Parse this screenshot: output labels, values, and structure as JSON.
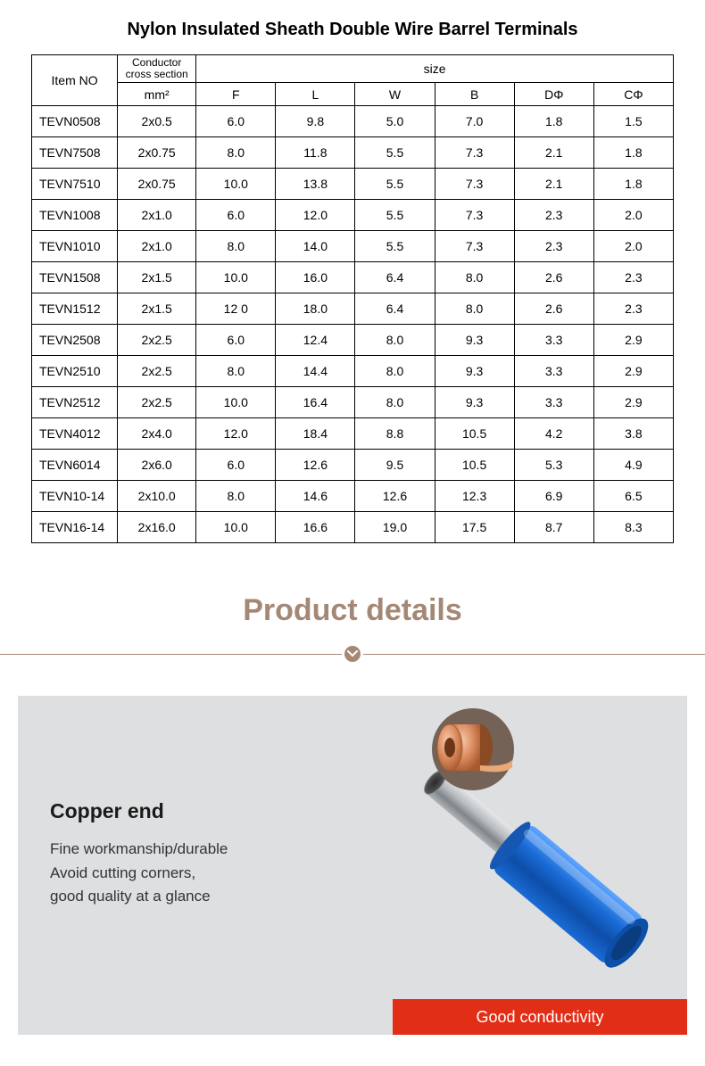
{
  "title": "Nylon Insulated Sheath Double Wire Barrel Terminals",
  "table": {
    "header_item": "Item NO",
    "header_conductor": "Conductor cross section",
    "header_size": "size",
    "header_mm2": "mm²",
    "size_cols": [
      "F",
      "L",
      "W",
      "B",
      "DΦ",
      "CΦ"
    ],
    "rows": [
      {
        "item": "TEVN0508",
        "cs": "2x0.5",
        "F": "6.0",
        "L": "9.8",
        "W": "5.0",
        "B": "7.0",
        "D": "1.8",
        "C": "1.5"
      },
      {
        "item": "TEVN7508",
        "cs": "2x0.75",
        "F": "8.0",
        "L": "11.8",
        "W": "5.5",
        "B": "7.3",
        "D": "2.1",
        "C": "1.8"
      },
      {
        "item": "TEVN7510",
        "cs": "2x0.75",
        "F": "10.0",
        "L": "13.8",
        "W": "5.5",
        "B": "7.3",
        "D": "2.1",
        "C": "1.8"
      },
      {
        "item": "TEVN1008",
        "cs": "2x1.0",
        "F": "6.0",
        "L": "12.0",
        "W": "5.5",
        "B": "7.3",
        "D": "2.3",
        "C": "2.0"
      },
      {
        "item": "TEVN1010",
        "cs": "2x1.0",
        "F": "8.0",
        "L": "14.0",
        "W": "5.5",
        "B": "7.3",
        "D": "2.3",
        "C": "2.0"
      },
      {
        "item": "TEVN1508",
        "cs": "2x1.5",
        "F": "10.0",
        "L": "16.0",
        "W": "6.4",
        "B": "8.0",
        "D": "2.6",
        "C": "2.3"
      },
      {
        "item": "TEVN1512",
        "cs": "2x1.5",
        "F": "12 0",
        "L": "18.0",
        "W": "6.4",
        "B": "8.0",
        "D": "2.6",
        "C": "2.3"
      },
      {
        "item": "TEVN2508",
        "cs": "2x2.5",
        "F": "6.0",
        "L": "12.4",
        "W": "8.0",
        "B": "9.3",
        "D": "3.3",
        "C": "2.9"
      },
      {
        "item": "TEVN2510",
        "cs": "2x2.5",
        "F": "8.0",
        "L": "14.4",
        "W": "8.0",
        "B": "9.3",
        "D": "3.3",
        "C": "2.9"
      },
      {
        "item": "TEVN2512",
        "cs": "2x2.5",
        "F": "10.0",
        "L": "16.4",
        "W": "8.0",
        "B": "9.3",
        "D": "3.3",
        "C": "2.9"
      },
      {
        "item": "TEVN4012",
        "cs": "2x4.0",
        "F": "12.0",
        "L": "18.4",
        "W": "8.8",
        "B": "10.5",
        "D": "4.2",
        "C": "3.8"
      },
      {
        "item": "TEVN6014",
        "cs": "2x6.0",
        "F": "6.0",
        "L": "12.6",
        "W": "9.5",
        "B": "10.5",
        "D": "5.3",
        "C": "4.9"
      },
      {
        "item": "TEVN10-14",
        "cs": "2x10.0",
        "F": "8.0",
        "L": "14.6",
        "W": "12.6",
        "B": "12.3",
        "D": "6.9",
        "C": "6.5"
      },
      {
        "item": "TEVN16-14",
        "cs": "2x16.0",
        "F": "10.0",
        "L": "16.6",
        "W": "19.0",
        "B": "17.5",
        "D": "8.7",
        "C": "8.3"
      }
    ]
  },
  "details": {
    "title": "Product details",
    "heading": "Copper end",
    "desc_line1": "Fine workmanship/durable",
    "desc_line2": "Avoid cutting corners,",
    "desc_line3": "good quality at a glance",
    "banner": "Good conductivity",
    "colors": {
      "accent": "#a48875",
      "banner_bg": "#e12f17",
      "card_bg": "#dedfe0",
      "ferrule_blue": "#1a6bd6",
      "ferrule_blue_hi": "#5fa6ff",
      "metal": "#b9bcc0",
      "metal_dark": "#7f8589",
      "copper": "#d98a5e",
      "copper_dark": "#a85a30"
    }
  }
}
